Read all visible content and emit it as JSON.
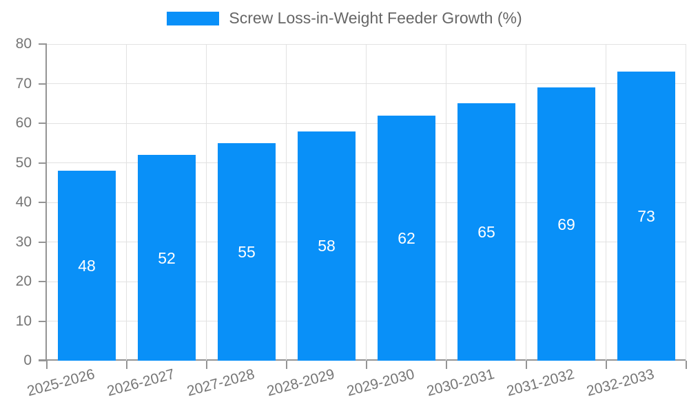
{
  "legend": {
    "label": "Screw Loss-in-Weight Feeder Growth (%)"
  },
  "colors": {
    "bar": "#0990f8",
    "grid": "#e2e2e2",
    "axis": "#949494",
    "tick_label": "#757575",
    "title": "#666666",
    "value_label": "#ffffff",
    "background": "#ffffff"
  },
  "chart_data": {
    "type": "bar",
    "title": "Screw Loss-in-Weight Feeder Growth (%)",
    "categories": [
      "2025-2026",
      "2026-2027",
      "2027-2028",
      "2028-2029",
      "2029-2030",
      "2030-2031",
      "2031-2032",
      "2032-2033"
    ],
    "values": [
      48,
      52,
      55,
      58,
      62,
      65,
      69,
      73
    ],
    "value_labels_shown": [
      48,
      52,
      55,
      58,
      62,
      65,
      69,
      73
    ],
    "xlabel": "",
    "ylabel": "",
    "ylim": [
      0,
      80
    ],
    "yticks": [
      0,
      10,
      20,
      30,
      40,
      50,
      60,
      70,
      80
    ],
    "grid": "on",
    "legend_position": "top-center",
    "bar_color": "#0990f8",
    "value_label_style": "white, centered inside bar",
    "x_label_rotation_deg": -15
  }
}
